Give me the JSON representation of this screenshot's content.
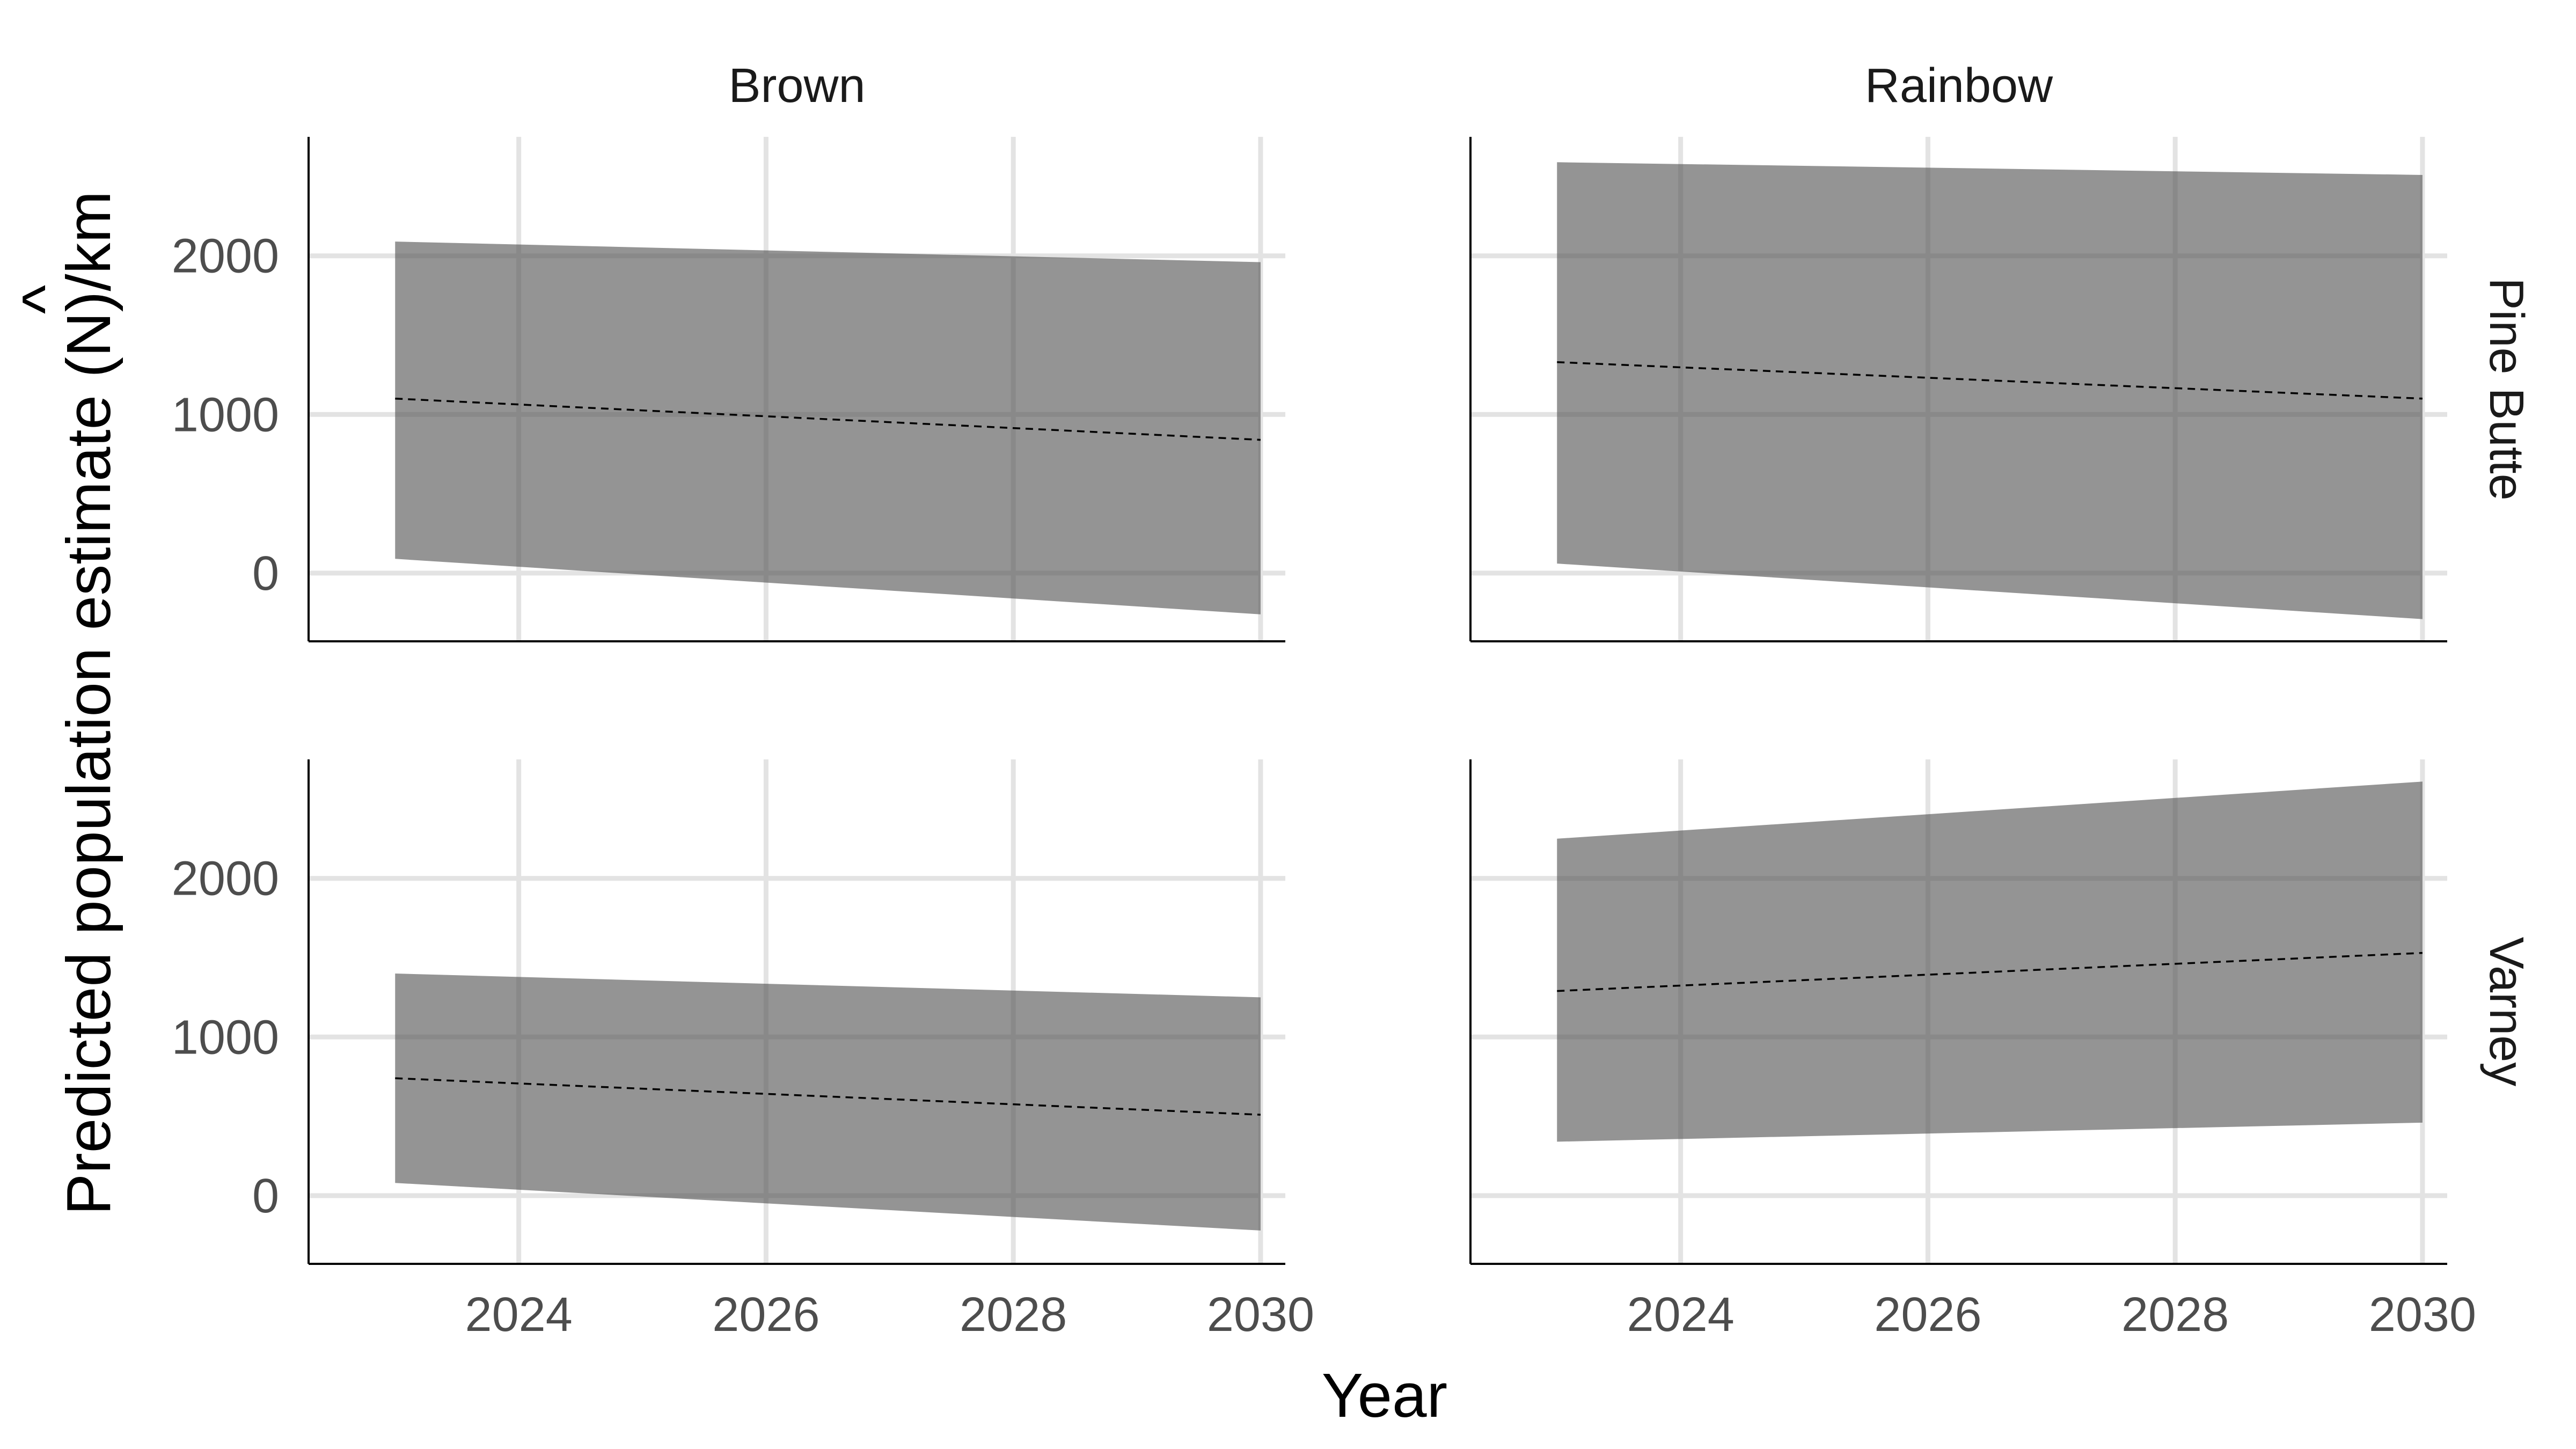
{
  "chart_data": {
    "type": "area",
    "xlabel": "Year",
    "ylabel": {
      "prefix": "Predicted population estimate (",
      "symbol": "N",
      "hat": "^",
      "suffix": ")/km"
    },
    "xlim": [
      2022.3,
      2030.2
    ],
    "ylim": [
      -430,
      2750
    ],
    "x_ticks": [
      "2024",
      "2026",
      "2028",
      "2030"
    ],
    "y_ticks": [
      "0",
      "1000",
      "2000"
    ],
    "columns": [
      "Brown",
      "Rainbow"
    ],
    "rows": [
      "Pine Butte",
      "Varney"
    ],
    "panels": [
      {
        "column": "Brown",
        "row": "Pine Butte",
        "x": [
          2023,
          2030
        ],
        "estimate": [
          1100,
          840
        ],
        "lower": [
          90,
          -260
        ],
        "upper": [
          2090,
          1960
        ]
      },
      {
        "column": "Rainbow",
        "row": "Pine Butte",
        "x": [
          2023,
          2030
        ],
        "estimate": [
          1330,
          1100
        ],
        "lower": [
          60,
          -290
        ],
        "upper": [
          2590,
          2510
        ]
      },
      {
        "column": "Brown",
        "row": "Varney",
        "x": [
          2023,
          2030
        ],
        "estimate": [
          740,
          510
        ],
        "lower": [
          80,
          -220
        ],
        "upper": [
          1400,
          1250
        ]
      },
      {
        "column": "Rainbow",
        "row": "Varney",
        "x": [
          2023,
          2030
        ],
        "estimate": [
          1290,
          1530
        ],
        "lower": [
          340,
          460
        ],
        "upper": [
          2250,
          2610
        ]
      }
    ],
    "band_color": "#4d4d4d",
    "band_opacity": 0.6,
    "line_style": "dashed",
    "line_color": "#000000",
    "grid": true,
    "legend": "none"
  }
}
